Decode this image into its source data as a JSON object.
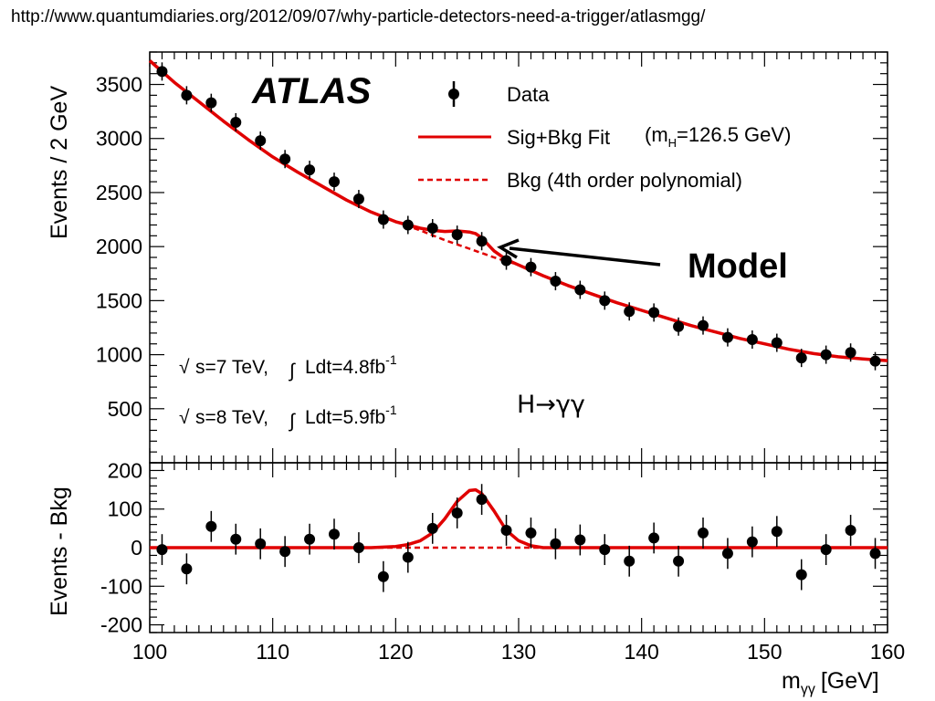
{
  "source_url": "http://www.quantumdiaries.org/2012/09/07/why-particle-detectors-need-a-trigger/atlasmgg/",
  "chart_data": [
    {
      "type": "scatter",
      "panel": "top",
      "experiment_label": "ATLAS",
      "ylabel": "Events / 2 GeV",
      "ylim": [
        0,
        3800
      ],
      "yticks": [
        "500",
        "1000",
        "1500",
        "2000",
        "2500",
        "3000",
        "3500"
      ],
      "xlim": [
        100,
        160
      ],
      "legend_placement": "top-right",
      "legend": {
        "data": "Data",
        "fit_main": "Sig+Bkg Fit",
        "fit_param_prefix": "(m",
        "fit_param_sub": "H",
        "fit_param_suffix": "=126.5 GeV)",
        "bkg": "Bkg (4th order polynomial)"
      },
      "annotations": {
        "energy1_a": "s=7 TeV,",
        "energy1_b": "Ldt=4.8fb",
        "energy1_exp": "-1",
        "energy2_a": "s=8 TeV,",
        "energy2_b": "Ldt=5.9fb",
        "energy2_exp": "-1",
        "decay": "H→γγ",
        "model_label": "Model"
      },
      "series": [
        {
          "name": "Data",
          "x": [
            101,
            103,
            105,
            107,
            109,
            111,
            113,
            115,
            117,
            119,
            121,
            123,
            125,
            127,
            129,
            131,
            133,
            135,
            137,
            139,
            141,
            143,
            145,
            147,
            149,
            151,
            153,
            155,
            157,
            159
          ],
          "y": [
            3620,
            3400,
            3330,
            3150,
            2980,
            2810,
            2710,
            2600,
            2440,
            2250,
            2200,
            2170,
            2110,
            2050,
            1870,
            1810,
            1680,
            1600,
            1500,
            1400,
            1390,
            1260,
            1270,
            1160,
            1140,
            1110,
            970,
            1000,
            1020,
            940
          ]
        },
        {
          "name": "Sig+Bkg Fit",
          "x": [
            100,
            102,
            104,
            106,
            108,
            110,
            112,
            114,
            116,
            118,
            120,
            121,
            122,
            123,
            124,
            125,
            126,
            126.5,
            127,
            128,
            129,
            130,
            132,
            134,
            136,
            138,
            140,
            142,
            144,
            146,
            148,
            150,
            152,
            154,
            156,
            158,
            160
          ],
          "y": [
            3720,
            3520,
            3340,
            3160,
            2990,
            2830,
            2690,
            2560,
            2430,
            2320,
            2230,
            2200,
            2170,
            2150,
            2140,
            2145,
            2135,
            2120,
            2080,
            1960,
            1880,
            1830,
            1730,
            1640,
            1560,
            1480,
            1410,
            1340,
            1270,
            1210,
            1150,
            1100,
            1050,
            1010,
            980,
            960,
            945
          ]
        },
        {
          "name": "Bkg",
          "x": [
            118,
            120,
            122,
            124,
            126,
            128,
            130,
            132
          ],
          "y": [
            2320,
            2230,
            2150,
            2060,
            1980,
            1900,
            1830,
            1730
          ]
        }
      ]
    },
    {
      "type": "scatter",
      "panel": "bottom",
      "ylabel": "Events - Bkg",
      "xlabel_main": "m",
      "xlabel_sub": "γγ",
      "xlabel_unit": "[GeV]",
      "ylim": [
        -220,
        220
      ],
      "yticks": [
        "200",
        "100",
        "0",
        "-100",
        "-200"
      ],
      "xticks": [
        "100",
        "110",
        "120",
        "130",
        "140",
        "150",
        "160"
      ],
      "xlim": [
        100,
        160
      ],
      "series": [
        {
          "name": "Data",
          "x": [
            101,
            103,
            105,
            107,
            109,
            111,
            113,
            115,
            117,
            119,
            121,
            123,
            125,
            127,
            129,
            131,
            133,
            135,
            137,
            139,
            141,
            143,
            145,
            147,
            149,
            151,
            153,
            155,
            157,
            159
          ],
          "y": [
            -5,
            -55,
            55,
            22,
            10,
            -10,
            22,
            35,
            0,
            -75,
            -25,
            50,
            90,
            125,
            45,
            38,
            10,
            20,
            -5,
            -35,
            25,
            -35,
            38,
            -15,
            15,
            42,
            -70,
            -5,
            45,
            -15
          ],
          "err": [
            40,
            40,
            40,
            40,
            40,
            40,
            40,
            40,
            40,
            40,
            40,
            40,
            40,
            40,
            40,
            40,
            40,
            40,
            40,
            40,
            40,
            40,
            40,
            40,
            40,
            40,
            40,
            40,
            40,
            40
          ]
        },
        {
          "name": "Sig+Bkg Fit",
          "x": [
            100,
            118,
            120,
            121,
            122,
            123,
            124,
            125,
            126,
            126.5,
            127,
            128,
            129,
            130,
            131,
            132,
            135,
            160
          ],
          "y": [
            0,
            0,
            3,
            8,
            18,
            38,
            75,
            120,
            148,
            150,
            140,
            95,
            45,
            18,
            5,
            0,
            0,
            0
          ]
        },
        {
          "name": "Bkg",
          "x": [
            100,
            160
          ],
          "y": [
            0,
            0
          ]
        }
      ]
    }
  ]
}
